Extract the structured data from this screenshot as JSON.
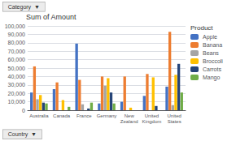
{
  "chart_data": {
    "type": "bar",
    "title": "Sum of Amount",
    "categories": [
      "Australia",
      "Canada",
      "France",
      "Germany",
      "New\nZealand",
      "United\nKingdom",
      "United\nStates"
    ],
    "series": [
      {
        "name": "Apple",
        "color": "#4472C4",
        "values": [
          21000,
          25000,
          79000,
          8000,
          10000,
          17000,
          28000
        ]
      },
      {
        "name": "Banana",
        "color": "#ED7D31",
        "values": [
          52000,
          33000,
          36000,
          40000,
          40000,
          43000,
          93000
        ]
      },
      {
        "name": "Beans",
        "color": "#A5A5A5",
        "values": [
          13000,
          0,
          7000,
          29000,
          0,
          0,
          6000
        ]
      },
      {
        "name": "Broccoli",
        "color": "#FFC000",
        "values": [
          18000,
          12000,
          0,
          38000,
          3000,
          39000,
          42000
        ]
      },
      {
        "name": "Carrots",
        "color": "#264478",
        "values": [
          9000,
          0,
          2000,
          21000,
          0,
          5000,
          55000
        ]
      },
      {
        "name": "Mango",
        "color": "#70AD47",
        "values": [
          8000,
          4000,
          9000,
          8000,
          0,
          0,
          21000
        ]
      }
    ],
    "ylim": [
      0,
      100000
    ],
    "yticks": [
      0,
      10000,
      20000,
      30000,
      40000,
      50000,
      60000,
      70000,
      80000,
      90000,
      100000
    ],
    "grid": true,
    "legend": "right",
    "legend_title": "Product",
    "annotations": [
      "Category  ▼",
      "Country  ▼"
    ]
  }
}
